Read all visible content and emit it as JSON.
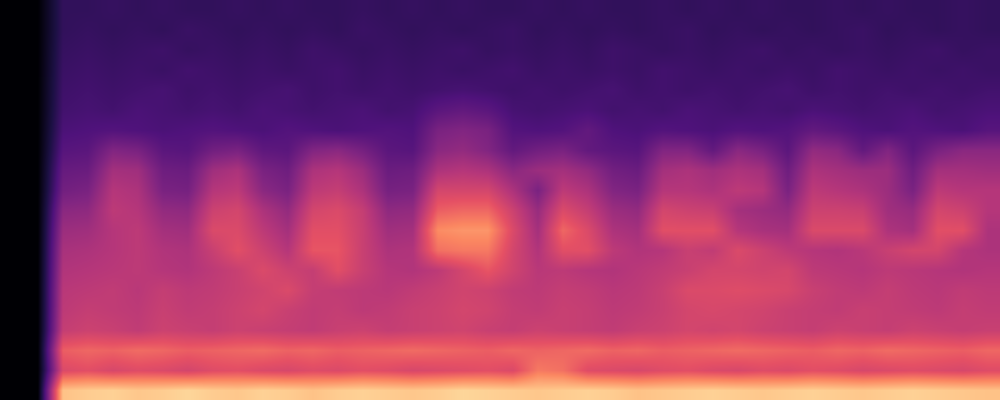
{
  "chart_data": {
    "type": "heatmap",
    "color": "magma",
    "tick_labels": false,
    "zlim": [
      0,
      100
    ],
    "cells": [
      [
        0,
        0,
        88,
        90,
        91,
        89,
        90,
        92,
        90,
        89,
        91,
        90,
        88,
        90,
        91,
        90,
        89,
        90,
        92,
        91,
        90,
        89,
        90,
        91,
        90,
        88,
        89,
        90,
        91,
        90,
        89,
        90,
        91,
        90,
        89,
        90,
        91,
        90,
        89,
        88
      ],
      [
        0,
        0,
        60,
        62,
        59,
        61,
        60,
        58,
        61,
        62,
        60,
        59,
        61,
        60,
        62,
        61,
        59,
        60,
        61,
        62,
        60,
        72,
        70,
        61,
        60,
        59,
        61,
        62,
        60,
        59,
        61,
        60,
        62,
        61,
        59,
        60,
        61,
        60,
        59,
        61
      ],
      [
        0,
        0,
        66,
        68,
        67,
        69,
        68,
        66,
        67,
        68,
        69,
        67,
        68,
        66,
        67,
        68,
        69,
        68,
        67,
        66,
        68,
        67,
        68,
        69,
        67,
        68,
        66,
        67,
        68,
        69,
        68,
        67,
        66,
        68,
        67,
        69,
        68,
        67,
        66,
        68
      ],
      [
        0,
        0,
        54,
        56,
        55,
        53,
        56,
        55,
        54,
        56,
        55,
        54,
        53,
        55,
        56,
        54,
        55,
        56,
        57,
        55,
        54,
        56,
        55,
        54,
        53,
        55,
        56,
        58,
        57,
        58,
        56,
        55,
        54,
        56,
        55,
        54,
        56,
        55,
        54,
        55
      ],
      [
        0,
        0,
        52,
        54,
        53,
        52,
        55,
        53,
        54,
        56,
        58,
        55,
        53,
        54,
        52,
        53,
        55,
        56,
        58,
        57,
        54,
        53,
        55,
        54,
        52,
        53,
        55,
        58,
        59,
        58,
        57,
        55,
        54,
        53,
        55,
        54,
        53,
        52,
        54,
        53
      ],
      [
        0,
        0,
        51,
        52,
        53,
        51,
        54,
        52,
        53,
        55,
        57,
        60,
        54,
        53,
        52,
        51,
        53,
        55,
        57,
        56,
        53,
        52,
        54,
        53,
        51,
        52,
        55,
        60,
        60,
        61,
        60,
        59,
        55,
        53,
        52,
        54,
        52,
        51,
        53,
        52
      ],
      [
        0,
        0,
        49,
        50,
        51,
        52,
        50,
        49,
        52,
        55,
        60,
        56,
        54,
        62,
        55,
        50,
        49,
        52,
        58,
        64,
        57,
        51,
        52,
        50,
        49,
        51,
        53,
        55,
        58,
        58,
        57,
        58,
        52,
        51,
        50,
        52,
        51,
        50,
        49,
        50
      ],
      [
        0,
        0,
        47,
        48,
        50,
        52,
        49,
        48,
        55,
        62,
        56,
        50,
        64,
        64,
        55,
        48,
        49,
        70,
        72,
        72,
        58,
        49,
        62,
        62,
        52,
        49,
        50,
        55,
        53,
        60,
        56,
        52,
        50,
        49,
        51,
        55,
        58,
        58,
        50,
        48
      ],
      [
        0,
        0,
        44,
        45,
        50,
        52,
        46,
        45,
        60,
        60,
        52,
        46,
        62,
        62,
        55,
        45,
        46,
        76,
        78,
        78,
        60,
        46,
        68,
        60,
        48,
        46,
        62,
        62,
        62,
        50,
        47,
        46,
        60,
        60,
        60,
        48,
        46,
        62,
        62,
        48
      ],
      [
        0,
        0,
        40,
        41,
        52,
        50,
        42,
        41,
        56,
        58,
        48,
        42,
        58,
        60,
        54,
        41,
        42,
        66,
        68,
        68,
        56,
        43,
        60,
        54,
        44,
        42,
        58,
        56,
        55,
        46,
        44,
        42,
        56,
        56,
        55,
        45,
        43,
        58,
        56,
        50
      ],
      [
        0,
        0,
        34,
        36,
        50,
        48,
        36,
        35,
        50,
        52,
        40,
        36,
        52,
        54,
        48,
        35,
        36,
        58,
        58,
        58,
        48,
        36,
        52,
        48,
        38,
        36,
        50,
        50,
        48,
        52,
        50,
        36,
        52,
        50,
        48,
        44,
        36,
        52,
        50,
        50
      ],
      [
        0,
        0,
        31,
        32,
        46,
        45,
        33,
        32,
        45,
        48,
        36,
        33,
        48,
        50,
        44,
        32,
        33,
        48,
        50,
        48,
        40,
        44,
        46,
        42,
        34,
        32,
        46,
        48,
        45,
        48,
        46,
        33,
        48,
        46,
        44,
        44,
        33,
        46,
        46,
        45
      ],
      [
        0,
        0,
        27,
        28,
        38,
        36,
        28,
        27,
        34,
        36,
        29,
        28,
        38,
        40,
        35,
        28,
        27,
        40,
        42,
        38,
        30,
        34,
        36,
        30,
        28,
        27,
        38,
        38,
        30,
        40,
        36,
        28,
        42,
        40,
        30,
        38,
        28,
        36,
        40,
        40
      ],
      [
        0,
        0,
        24,
        25,
        26,
        25,
        24,
        25,
        26,
        25,
        24,
        26,
        25,
        24,
        25,
        26,
        25,
        36,
        38,
        36,
        26,
        25,
        26,
        30,
        25,
        24,
        26,
        25,
        24,
        26,
        25,
        26,
        30,
        28,
        25,
        24,
        26,
        25,
        24,
        27
      ],
      [
        0,
        0,
        22,
        23,
        22,
        24,
        23,
        22,
        23,
        22,
        24,
        23,
        22,
        23,
        24,
        22,
        23,
        28,
        30,
        28,
        23,
        22,
        23,
        24,
        22,
        23,
        22,
        24,
        23,
        22,
        23,
        22,
        24,
        23,
        22,
        23,
        24,
        22,
        23,
        24
      ],
      [
        0,
        0,
        21,
        22,
        21,
        22,
        23,
        21,
        22,
        21,
        22,
        23,
        21,
        22,
        21,
        22,
        21,
        22,
        23,
        22,
        21,
        22,
        21,
        22,
        23,
        21,
        22,
        21,
        22,
        21,
        22,
        23,
        21,
        22,
        21,
        22,
        21,
        22,
        21,
        22
      ],
      [
        0,
        0,
        20,
        21,
        20,
        21,
        20,
        22,
        21,
        20,
        21,
        20,
        21,
        22,
        20,
        21,
        20,
        21,
        20,
        21,
        22,
        20,
        21,
        20,
        21,
        20,
        22,
        21,
        20,
        21,
        20,
        21,
        20,
        22,
        21,
        20,
        21,
        20,
        21,
        20
      ],
      [
        0,
        0,
        19,
        20,
        19,
        20,
        21,
        19,
        20,
        19,
        20,
        19,
        21,
        20,
        19,
        20,
        19,
        20,
        21,
        19,
        20,
        19,
        20,
        19,
        21,
        20,
        19,
        20,
        19,
        20,
        21,
        19,
        20,
        19,
        20,
        19,
        20,
        21,
        19,
        20
      ],
      [
        0,
        0,
        18,
        19,
        18,
        19,
        18,
        20,
        19,
        18,
        19,
        18,
        19,
        18,
        20,
        19,
        18,
        19,
        18,
        19,
        20,
        18,
        19,
        18,
        19,
        18,
        19,
        20,
        18,
        19,
        18,
        19,
        18,
        19,
        20,
        18,
        19,
        18,
        19,
        18
      ],
      [
        0,
        0,
        18,
        18,
        19,
        18,
        19,
        18,
        18,
        19,
        18,
        19,
        18,
        18,
        19,
        18,
        19,
        18,
        19,
        18,
        18,
        19,
        18,
        19,
        18,
        18,
        19,
        18,
        19,
        18,
        19,
        18,
        18,
        19,
        18,
        19,
        18,
        18,
        19,
        18
      ]
    ]
  }
}
